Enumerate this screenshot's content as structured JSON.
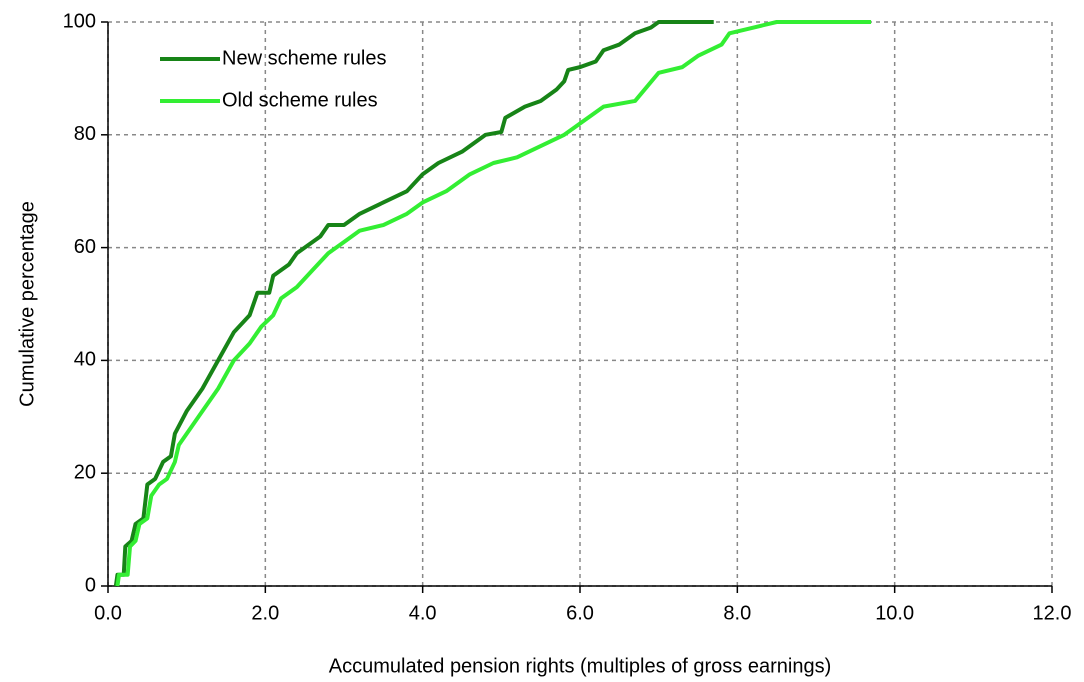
{
  "chart_data": {
    "type": "line",
    "xlabel": "Accumulated pension rights (multiples of gross earnings)",
    "ylabel": "Cumulative percentage",
    "xlim": [
      0,
      12
    ],
    "ylim": [
      0,
      100
    ],
    "xticks": [
      {
        "value": 0,
        "label": "0.0"
      },
      {
        "value": 2,
        "label": "2.0"
      },
      {
        "value": 4,
        "label": "4.0"
      },
      {
        "value": 6,
        "label": "6.0"
      },
      {
        "value": 8,
        "label": "8.0"
      },
      {
        "value": 10,
        "label": "10.0"
      },
      {
        "value": 12,
        "label": "12.0"
      }
    ],
    "yticks": [
      0,
      20,
      40,
      60,
      80,
      100
    ],
    "grid": true,
    "legend": "upper-left",
    "series": [
      {
        "name": "New scheme rules",
        "color": "#178417",
        "x": [
          0.1,
          0.12,
          0.2,
          0.22,
          0.3,
          0.35,
          0.45,
          0.5,
          0.6,
          0.7,
          0.8,
          0.85,
          1.0,
          1.2,
          1.4,
          1.6,
          1.8,
          1.9,
          2.05,
          2.1,
          2.3,
          2.4,
          2.7,
          2.8,
          3.0,
          3.2,
          3.5,
          3.8,
          4.0,
          4.2,
          4.5,
          4.8,
          5.0,
          5.05,
          5.3,
          5.5,
          5.7,
          5.8,
          5.85,
          6.0,
          6.2,
          6.3,
          6.5,
          6.7,
          6.9,
          7.0,
          7.7
        ],
        "values": [
          0,
          2,
          2,
          7,
          8,
          11,
          12,
          18,
          19,
          22,
          23,
          27,
          31,
          35,
          40,
          45,
          48,
          52,
          52,
          55,
          57,
          59,
          62,
          64,
          64,
          66,
          68,
          70,
          73,
          75,
          77,
          80,
          80.5,
          83,
          85,
          86,
          88,
          89.5,
          91.5,
          92,
          93,
          95,
          96,
          98,
          99,
          100,
          100
        ]
      },
      {
        "name": "Old scheme rules",
        "color": "#33ee33",
        "x": [
          0.12,
          0.14,
          0.25,
          0.28,
          0.35,
          0.4,
          0.5,
          0.55,
          0.65,
          0.75,
          0.85,
          0.9,
          1.0,
          1.2,
          1.4,
          1.6,
          1.8,
          1.95,
          2.1,
          2.2,
          2.4,
          2.6,
          2.8,
          3.0,
          3.2,
          3.5,
          3.8,
          4.0,
          4.3,
          4.6,
          4.9,
          5.2,
          5.5,
          5.8,
          6.0,
          6.3,
          6.7,
          7.0,
          7.3,
          7.5,
          7.8,
          7.9,
          8.2,
          8.5,
          9.7
        ],
        "values": [
          0,
          2,
          2,
          7,
          8,
          11,
          12,
          16,
          18,
          19,
          22,
          25,
          27,
          31,
          35,
          40,
          43,
          46,
          48,
          51,
          53,
          56,
          59,
          61,
          63,
          64,
          66,
          68,
          70,
          73,
          75,
          76,
          78,
          80,
          82,
          85,
          86,
          91,
          92,
          94,
          96,
          98,
          99,
          100,
          100
        ]
      }
    ]
  }
}
